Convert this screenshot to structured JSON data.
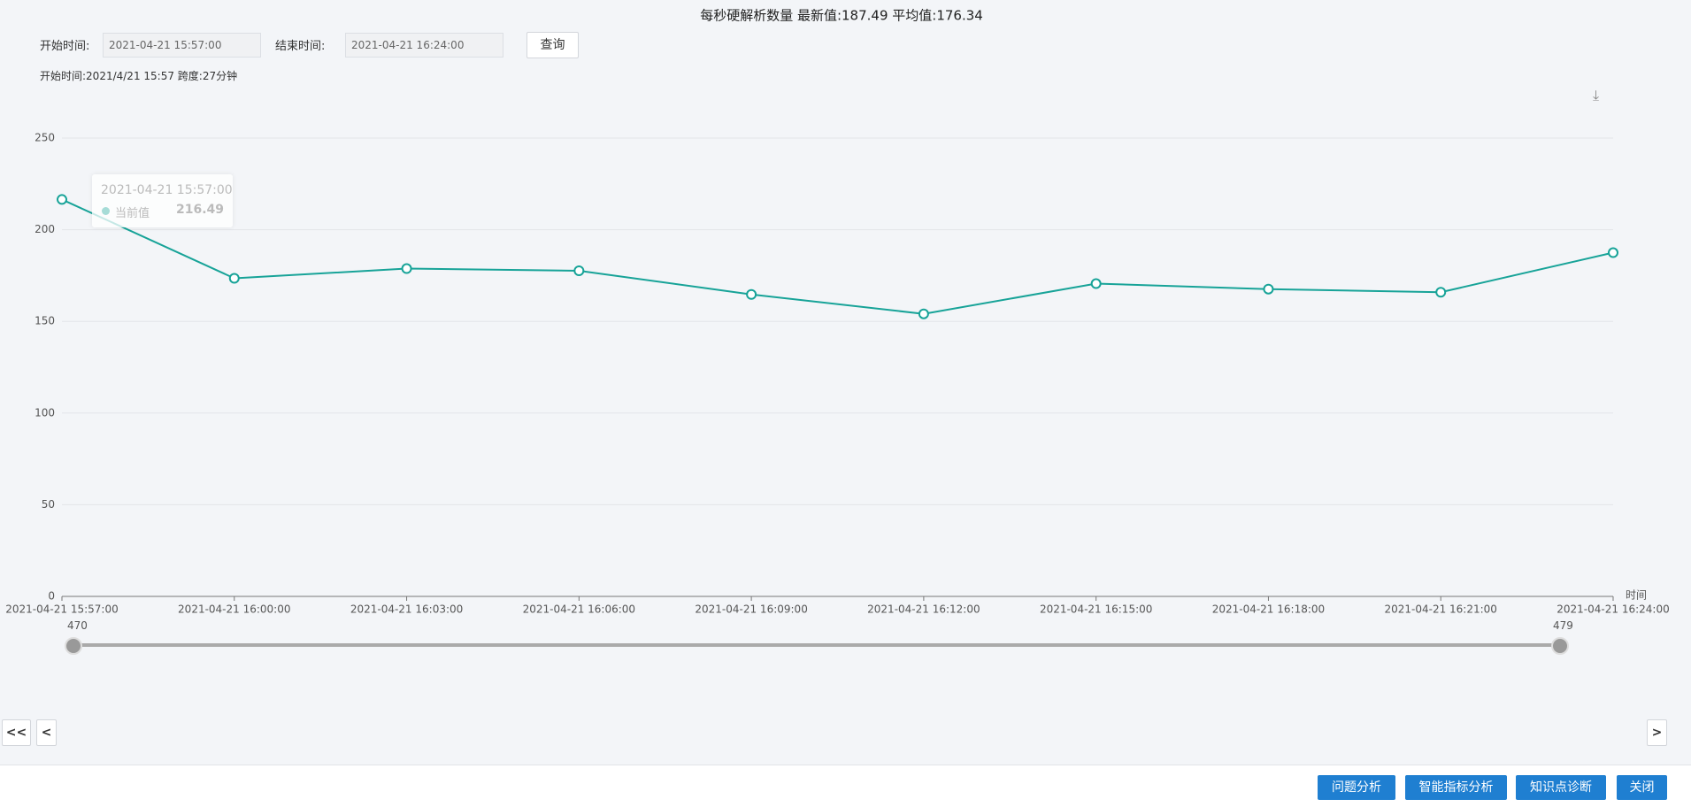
{
  "ui": {
    "start_label": "开始时间:",
    "start_value": "2021-04-21 15:57:00",
    "end_label": "结束时间:",
    "end_value": "2021-04-21 16:24:00",
    "query_button": "查询",
    "info": "开始时间:2021/4/21 15:57 跨度:27分钟",
    "tooltip": {
      "time": "2021-04-21 15:57:00",
      "label": "当前值"
    },
    "slider": {
      "start": 470,
      "end": 479
    },
    "nav": {
      "first": "<<",
      "prev": "<",
      "next": ">"
    },
    "buttons": [
      "问题分析",
      "智能指标分析",
      "知识点诊断",
      "关闭"
    ]
  },
  "chart_data": {
    "type": "line",
    "title": "每秒硬解析数量 最新值:187.49 平均值:176.34",
    "x_label": "时间",
    "categories": [
      "2021-04-21 15:57:00",
      "2021-04-21 16:00:00",
      "2021-04-21 16:03:00",
      "2021-04-21 16:06:00",
      "2021-04-21 16:09:00",
      "2021-04-21 16:12:00",
      "2021-04-21 16:15:00",
      "2021-04-21 16:18:00",
      "2021-04-21 16:21:00",
      "2021-04-21 16:24:00"
    ],
    "values": [
      216.49,
      173.5,
      178.8,
      177.6,
      164.7,
      154.1,
      170.6,
      167.6,
      165.9,
      187.49
    ],
    "color": "#17a398",
    "ylim": [
      0,
      250
    ],
    "yticks": [
      0,
      50,
      100,
      150,
      200,
      250
    ],
    "grid": true
  }
}
